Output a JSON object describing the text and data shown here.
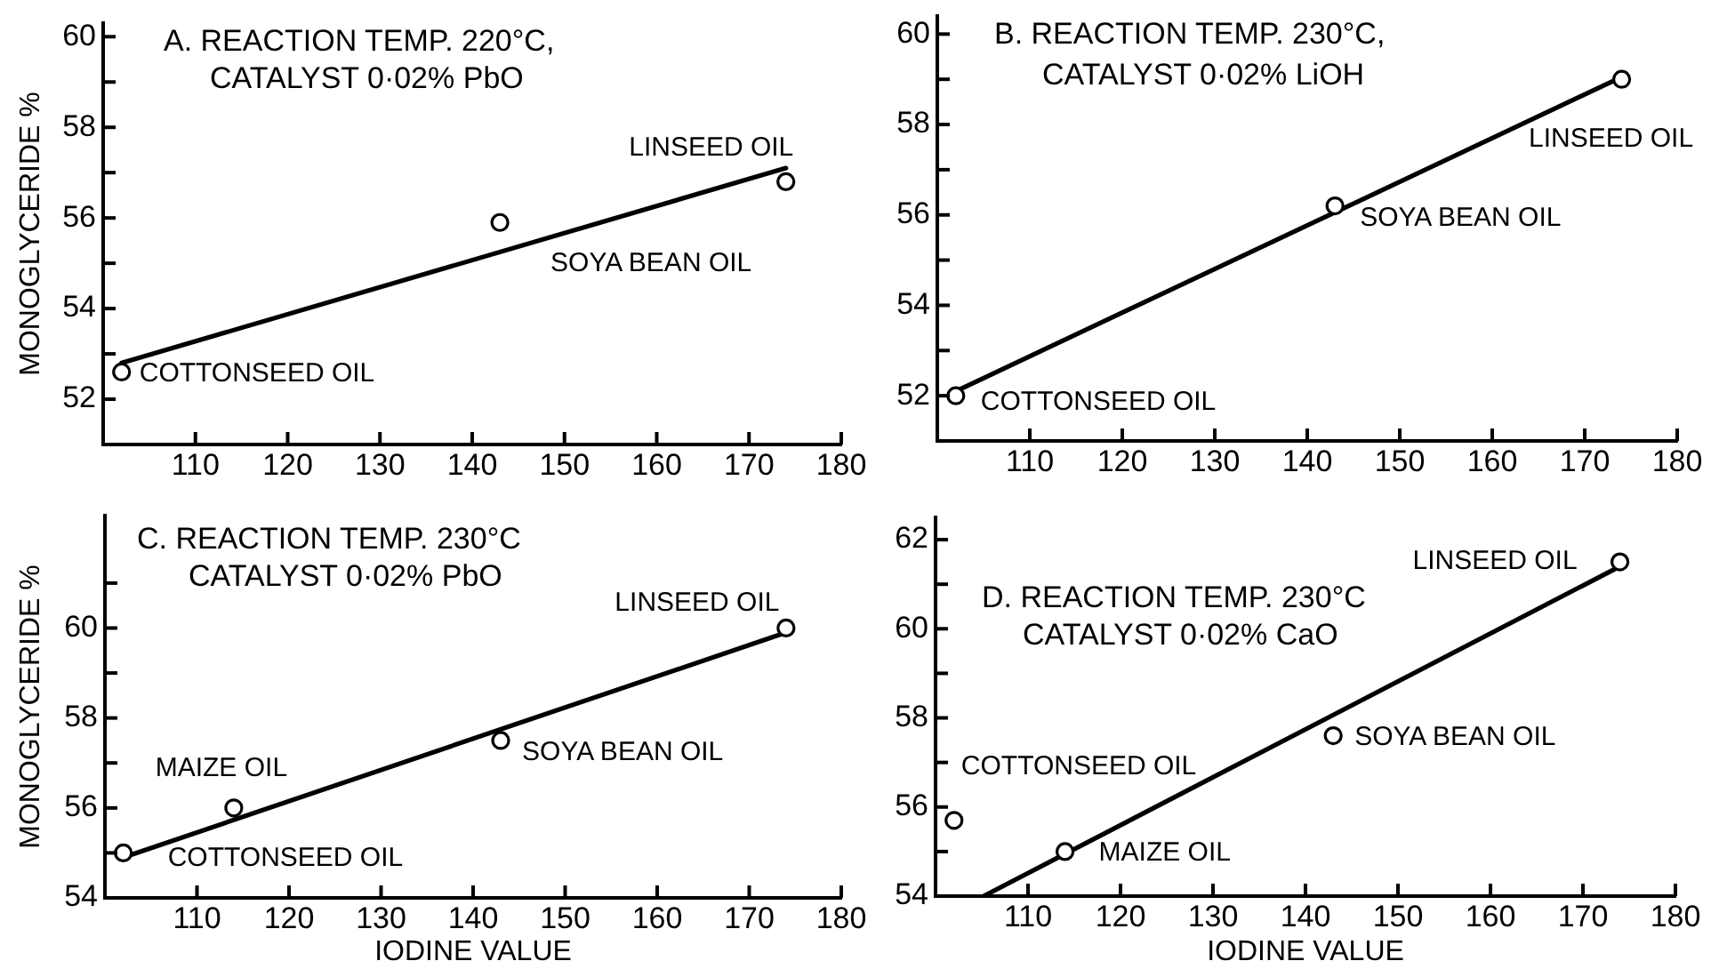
{
  "chart_data": [
    {
      "type": "scatter",
      "title": "A. REACTION TEMP. 220°C,",
      "subtitle": "CATALYST 0·02% PbO",
      "ylabel": "MONOGLYCERIDE %",
      "xlim": [
        100,
        180
      ],
      "xticks": [
        110,
        120,
        130,
        140,
        150,
        160,
        170,
        180
      ],
      "ylim": [
        51,
        60.3
      ],
      "yticks": [
        52,
        {
          "value": 53,
          "label": null
        },
        54,
        {
          "value": 55,
          "label": null
        },
        56,
        {
          "value": 57,
          "label": null
        },
        58,
        {
          "value": 59,
          "label": null
        },
        60
      ],
      "grid": false,
      "legend": false,
      "series": [
        {
          "type": "line",
          "color": "#000000",
          "marker": "none",
          "x": [
            102,
            174
          ],
          "values": [
            52.8,
            57.1
          ]
        },
        {
          "color": "#000000",
          "marker": "circle",
          "x": [
            102,
            143,
            174
          ],
          "values": [
            52.6,
            55.9,
            56.8
          ]
        }
      ],
      "annotations": [
        {
          "text": "COTTONSEED OIL",
          "x": 102,
          "y": 52.6
        },
        {
          "text": "SOYA BEAN OIL",
          "x": 143,
          "y": 55.9
        },
        {
          "text": "LINSEED OIL",
          "x": 174,
          "y": 56.8
        }
      ]
    },
    {
      "type": "scatter",
      "title": "B. REACTION TEMP. 230°C,",
      "subtitle": "CATALYST 0·02% LiOH",
      "xlim": [
        100,
        180
      ],
      "xticks": [
        110,
        120,
        130,
        140,
        150,
        160,
        170,
        180
      ],
      "ylim": [
        51,
        60.4
      ],
      "yticks": [
        52,
        {
          "value": 53,
          "label": null
        },
        54,
        {
          "value": 55,
          "label": null
        },
        56,
        {
          "value": 57,
          "label": null
        },
        58,
        {
          "value": 59,
          "label": null
        },
        60
      ],
      "grid": false,
      "legend": false,
      "series": [
        {
          "type": "line",
          "color": "#000000",
          "marker": "none",
          "x": [
            102,
            174
          ],
          "values": [
            52.1,
            59.05
          ]
        },
        {
          "color": "#000000",
          "marker": "circle",
          "x": [
            102,
            143,
            174
          ],
          "values": [
            52.0,
            56.2,
            59.0
          ]
        }
      ],
      "annotations": [
        {
          "text": "COTTONSEED OIL",
          "x": 102,
          "y": 52.0
        },
        {
          "text": "SOYA BEAN OIL",
          "x": 143,
          "y": 56.2
        },
        {
          "text": "LINSEED OIL",
          "x": 174,
          "y": 59.0
        }
      ]
    },
    {
      "type": "scatter",
      "title": "C. REACTION TEMP. 230°C",
      "subtitle": "CATALYST 0·02% PbO",
      "xlabel": "IODINE VALUE",
      "ylabel": "MONOGLYCERIDE %",
      "xlim": [
        100,
        180
      ],
      "xticks": [
        110,
        120,
        130,
        140,
        150,
        160,
        170,
        180
      ],
      "ylim": [
        54,
        62.5
      ],
      "yticks": [
        54,
        {
          "value": 55,
          "label": null
        },
        56,
        {
          "value": 57,
          "label": null
        },
        58,
        {
          "value": 59,
          "label": null
        },
        60,
        {
          "value": 61,
          "label": null
        }
      ],
      "grid": false,
      "legend": false,
      "series": [
        {
          "type": "line",
          "color": "#000000",
          "marker": "none",
          "x": [
            102,
            174
          ],
          "values": [
            54.9,
            59.9
          ]
        },
        {
          "color": "#000000",
          "marker": "circle",
          "x": [
            102,
            114,
            143,
            174
          ],
          "values": [
            55.0,
            56.0,
            57.5,
            60.0
          ]
        }
      ],
      "annotations": [
        {
          "text": "COTTONSEED OIL",
          "x": 102,
          "y": 55.0
        },
        {
          "text": "MAIZE OIL",
          "x": 114,
          "y": 56.0
        },
        {
          "text": "SOYA BEAN OIL",
          "x": 143,
          "y": 57.5
        },
        {
          "text": "LINSEED OIL",
          "x": 174,
          "y": 60.0
        }
      ]
    },
    {
      "type": "scatter",
      "title": "D. REACTION TEMP. 230°C",
      "subtitle": "CATALYST 0·02% CaO",
      "xlabel": "IODINE VALUE",
      "xlim": [
        100,
        180
      ],
      "xticks": [
        110,
        120,
        130,
        140,
        150,
        160,
        170,
        180
      ],
      "ylim": [
        54,
        62.5
      ],
      "yticks": [
        54,
        {
          "value": 55,
          "label": null
        },
        56,
        {
          "value": 57,
          "label": null
        },
        58,
        {
          "value": 59,
          "label": null
        },
        60,
        {
          "value": 61,
          "label": null
        },
        62
      ],
      "grid": false,
      "legend": false,
      "series": [
        {
          "type": "line",
          "color": "#000000",
          "marker": "none",
          "x": [
            105.2,
            174
          ],
          "values": [
            54,
            61.4
          ]
        },
        {
          "color": "#000000",
          "marker": "circle",
          "x": [
            102,
            114,
            143,
            174
          ],
          "values": [
            55.7,
            55.0,
            57.6,
            61.5
          ]
        }
      ],
      "annotations": [
        {
          "text": "COTTONSEED OIL",
          "x": 102,
          "y": 55.7
        },
        {
          "text": "MAIZE OIL",
          "x": 114,
          "y": 55.0
        },
        {
          "text": "SOYA BEAN OIL",
          "x": 143,
          "y": 57.6
        },
        {
          "text": "LINSEED OIL",
          "x": 174,
          "y": 61.5
        }
      ]
    }
  ]
}
